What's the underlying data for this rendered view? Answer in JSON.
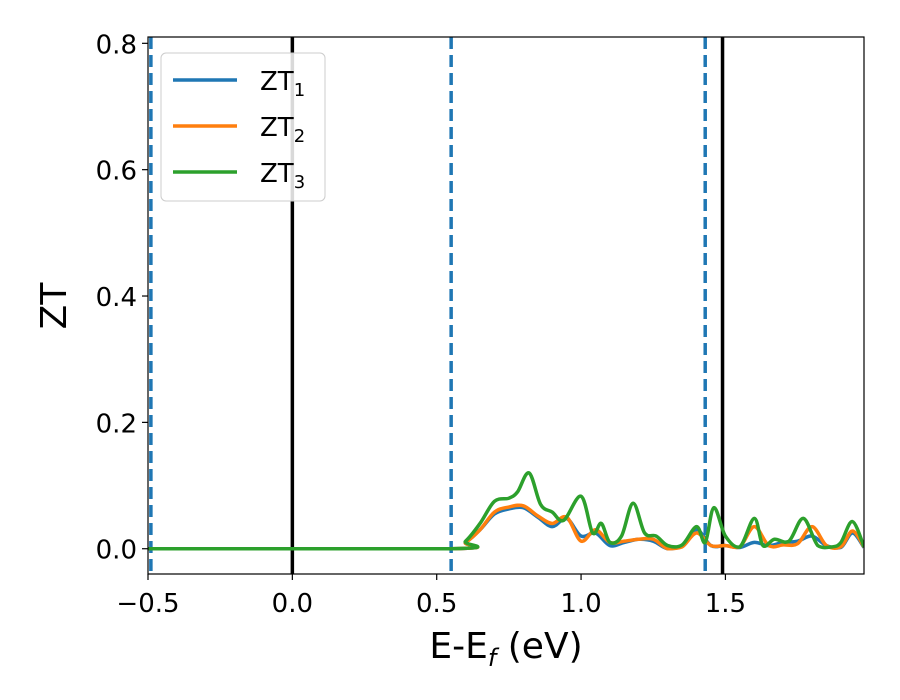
{
  "chart_data": {
    "type": "line",
    "xlabel": "E-E",
    "xlabel_sub": "f",
    "xlabel_unit": " (eV)",
    "ylabel": "ZT",
    "xlim": [
      -0.5,
      1.98
    ],
    "ylim": [
      -0.04,
      0.81
    ],
    "xticks": [
      -0.5,
      0.0,
      0.5,
      1.0,
      1.5
    ],
    "xtick_labels": [
      "−0.5",
      "0.0",
      "0.5",
      "1.0",
      "1.5"
    ],
    "yticks": [
      0.0,
      0.2,
      0.4,
      0.6,
      0.8
    ],
    "ytick_labels": [
      "0.0",
      "0.2",
      "0.4",
      "0.6",
      "0.8"
    ],
    "grid": false,
    "legend_position": "top-left",
    "series": [
      {
        "name": "ZT",
        "subscript": "1",
        "color": "#1f77b4",
        "x": [
          -0.5,
          0.55,
          0.6,
          0.65,
          0.7,
          0.75,
          0.8,
          0.85,
          0.9,
          0.95,
          1.0,
          1.05,
          1.1,
          1.15,
          1.2,
          1.25,
          1.3,
          1.35,
          1.4,
          1.45,
          1.5,
          1.55,
          1.6,
          1.65,
          1.7,
          1.75,
          1.8,
          1.85,
          1.9,
          1.94,
          1.98
        ],
        "y": [
          0.0,
          0.0,
          0.01,
          0.03,
          0.055,
          0.063,
          0.065,
          0.05,
          0.035,
          0.048,
          0.02,
          0.025,
          0.005,
          0.01,
          0.015,
          0.012,
          0.0,
          0.005,
          0.03,
          0.005,
          0.005,
          0.002,
          0.01,
          0.005,
          0.01,
          0.012,
          0.02,
          0.005,
          0.002,
          0.025,
          0.002
        ]
      },
      {
        "name": "ZT",
        "subscript": "2",
        "color": "#ff7f0e",
        "x": [
          -0.5,
          0.55,
          0.6,
          0.65,
          0.7,
          0.75,
          0.8,
          0.85,
          0.9,
          0.95,
          1.0,
          1.05,
          1.1,
          1.15,
          1.2,
          1.25,
          1.3,
          1.35,
          1.4,
          1.45,
          1.5,
          1.55,
          1.6,
          1.65,
          1.7,
          1.75,
          1.8,
          1.85,
          1.9,
          1.94,
          1.98
        ],
        "y": [
          0.0,
          0.0,
          0.01,
          0.03,
          0.058,
          0.066,
          0.068,
          0.052,
          0.04,
          0.05,
          0.012,
          0.03,
          0.01,
          0.012,
          0.015,
          0.015,
          0.0,
          0.003,
          0.025,
          0.005,
          0.005,
          0.003,
          0.035,
          0.005,
          0.006,
          0.008,
          0.035,
          0.005,
          0.003,
          0.028,
          0.003
        ]
      },
      {
        "name": "ZT",
        "subscript": "3",
        "color": "#2ca02c",
        "x": [
          -0.5,
          0.55,
          0.6,
          0.65,
          0.7,
          0.75,
          0.78,
          0.82,
          0.86,
          0.9,
          0.94,
          1.0,
          1.04,
          1.07,
          1.1,
          1.14,
          1.18,
          1.22,
          1.26,
          1.3,
          1.35,
          1.4,
          1.43,
          1.46,
          1.5,
          1.55,
          1.6,
          1.63,
          1.67,
          1.72,
          1.77,
          1.82,
          1.87,
          1.9,
          1.94,
          1.98
        ],
        "y": [
          0.0,
          0.0,
          0.012,
          0.04,
          0.075,
          0.08,
          0.09,
          0.12,
          0.07,
          0.058,
          0.045,
          0.083,
          0.025,
          0.04,
          0.01,
          0.02,
          0.072,
          0.025,
          0.02,
          0.005,
          0.006,
          0.035,
          0.01,
          0.065,
          0.02,
          0.003,
          0.048,
          0.005,
          0.015,
          0.012,
          0.048,
          0.005,
          0.003,
          0.01,
          0.043,
          0.003
        ]
      }
    ],
    "vertical_lines": [
      {
        "x": -0.49,
        "style": "dashed",
        "color": "#1f77b4"
      },
      {
        "x": 0.0,
        "style": "solid",
        "color": "#000000"
      },
      {
        "x": 0.55,
        "style": "dashed",
        "color": "#1f77b4"
      },
      {
        "x": 1.43,
        "style": "dashed",
        "color": "#1f77b4"
      },
      {
        "x": 1.49,
        "style": "solid",
        "color": "#000000"
      }
    ]
  }
}
